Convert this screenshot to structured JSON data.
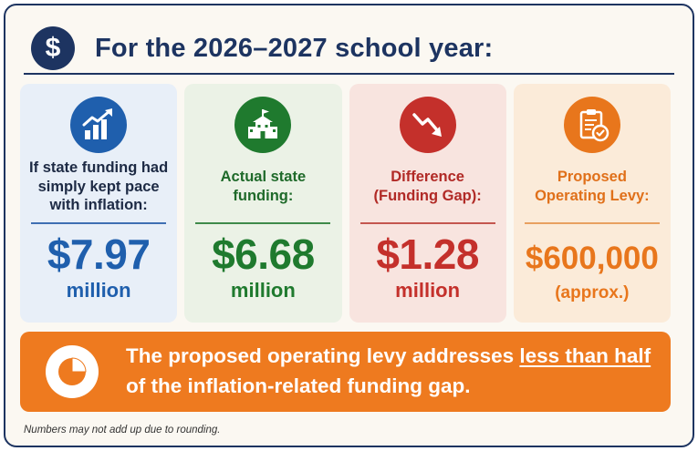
{
  "header": {
    "icon": "dollar-icon",
    "badge_symbol": "$",
    "title": "For the 2026–2027 school year:"
  },
  "cards": [
    {
      "key": "inflation",
      "icon": "bar-chart-growth-icon",
      "label_lines": [
        "If state funding had",
        "simply kept pace",
        "with inflation:"
      ],
      "amount": "$7.97",
      "unit": "million",
      "color": "#1f5fad"
    },
    {
      "key": "actual",
      "icon": "school-building-icon",
      "label_lines": [
        "Actual state",
        "funding:"
      ],
      "amount": "$6.68",
      "unit": "million",
      "color": "#1f7a2e"
    },
    {
      "key": "difference",
      "icon": "trend-down-icon",
      "label_lines": [
        "Difference",
        "(Funding Gap):"
      ],
      "amount": "$1.28",
      "unit": "million",
      "color": "#c4302b"
    },
    {
      "key": "levy",
      "icon": "clipboard-check-icon",
      "label_lines": [
        "Proposed",
        "Operating Levy:"
      ],
      "amount": "$600,000",
      "unit": "(approx.)",
      "color": "#e8761c"
    }
  ],
  "banner": {
    "icon": "pie-chart-icon",
    "text_start": "The proposed operating levy addresses ",
    "text_underlined": "less than half",
    "text_end": " of the inflation-related funding gap.",
    "color": "#ee7a1f"
  },
  "footnote": "Numbers may not add up due to rounding."
}
